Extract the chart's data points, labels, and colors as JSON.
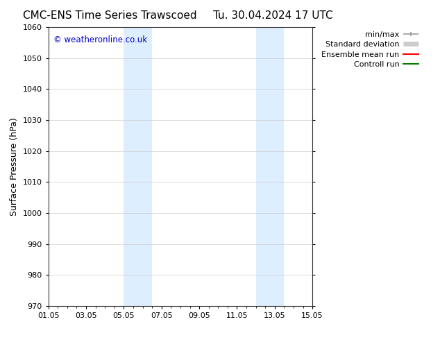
{
  "title_left": "CMC-ENS Time Series Trawscoed",
  "title_right": "Tu. 30.04.2024 17 UTC",
  "ylabel": "Surface Pressure (hPa)",
  "ylim": [
    970,
    1060
  ],
  "yticks": [
    970,
    980,
    990,
    1000,
    1010,
    1020,
    1030,
    1040,
    1050,
    1060
  ],
  "xtick_labels": [
    "01.05",
    "03.05",
    "05.05",
    "07.05",
    "09.05",
    "11.05",
    "13.05",
    "15.05"
  ],
  "xtick_positions": [
    0,
    2,
    4,
    6,
    8,
    10,
    12,
    14
  ],
  "x_total_days": 14,
  "shaded_bands": [
    {
      "xmin": 4.0,
      "xmax": 5.0
    },
    {
      "xmin": 5.0,
      "xmax": 5.5
    },
    {
      "xmin": 11.0,
      "xmax": 12.0
    },
    {
      "xmin": 12.0,
      "xmax": 12.5
    }
  ],
  "shaded_bands2": [
    {
      "xmin": 4.0,
      "xmax": 5.5
    },
    {
      "xmin": 11.0,
      "xmax": 12.5
    }
  ],
  "shade_color": "#ddeeff",
  "background_color": "#ffffff",
  "grid_color": "#cccccc",
  "watermark_text": "© weatheronline.co.uk",
  "watermark_color": "#0000cc",
  "legend_items": [
    {
      "label": "min/max",
      "color": "#999999",
      "lw": 1.2
    },
    {
      "label": "Standard deviation",
      "color": "#cccccc",
      "lw": 5
    },
    {
      "label": "Ensemble mean run",
      "color": "#ff0000",
      "lw": 1.5
    },
    {
      "label": "Controll run",
      "color": "#008000",
      "lw": 1.5
    }
  ],
  "title_fontsize": 11,
  "axis_label_fontsize": 9,
  "tick_fontsize": 8,
  "legend_fontsize": 8
}
